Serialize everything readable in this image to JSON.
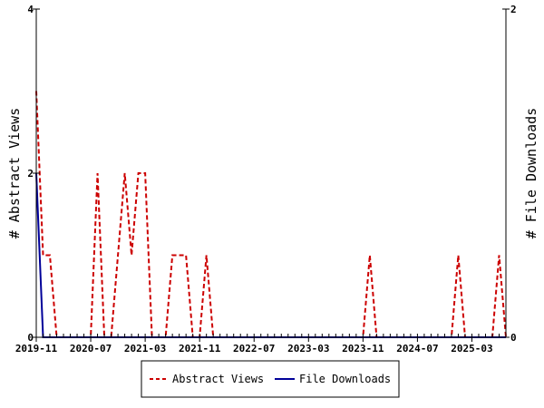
{
  "chart_data": {
    "type": "line",
    "title": "",
    "xlabel": "",
    "ylabel_left": "# Abstract Views",
    "ylabel_right": "# File Downloads",
    "x_tick_labels": [
      "2019-11",
      "2020-07",
      "2021-03",
      "2021-11",
      "2022-07",
      "2023-03",
      "2023-11",
      "2024-07",
      "2025-03"
    ],
    "y_left_ticks": [
      "0",
      "2",
      "4"
    ],
    "y_right_ticks": [
      "0",
      "2"
    ],
    "ylim_left": [
      0,
      4
    ],
    "ylim_right": [
      0,
      2
    ],
    "x_months": 70,
    "grid": false,
    "legend_position": "bottom",
    "series": [
      {
        "name": "Abstract Views",
        "axis": "left",
        "color": "#cc0000",
        "style": "dashed",
        "values": [
          3,
          1,
          1,
          0,
          0,
          0,
          0,
          0,
          0,
          2,
          0,
          0,
          1,
          2,
          1,
          2,
          2,
          0,
          0,
          0,
          1,
          1,
          1,
          0,
          0,
          1,
          0,
          0,
          0,
          0,
          0,
          0,
          0,
          0,
          0,
          0,
          0,
          0,
          0,
          0,
          0,
          0,
          0,
          0,
          0,
          0,
          0,
          0,
          0,
          1,
          0,
          0,
          0,
          0,
          0,
          0,
          0,
          0,
          0,
          0,
          0,
          0,
          1,
          0,
          0,
          0,
          0,
          0,
          1,
          0
        ]
      },
      {
        "name": "File Downloads",
        "axis": "right",
        "color": "#000099",
        "style": "solid",
        "values": [
          1,
          0,
          0,
          0,
          0,
          0,
          0,
          0,
          0,
          0,
          0,
          0,
          0,
          0,
          0,
          0,
          0,
          0,
          0,
          0,
          0,
          0,
          0,
          0,
          0,
          0,
          0,
          0,
          0,
          0,
          0,
          0,
          0,
          0,
          0,
          0,
          0,
          0,
          0,
          0,
          0,
          0,
          0,
          0,
          0,
          0,
          0,
          0,
          0,
          0,
          0,
          0,
          0,
          0,
          0,
          0,
          0,
          0,
          0,
          0,
          0,
          0,
          0,
          0,
          0,
          0,
          0,
          0,
          0,
          0
        ]
      }
    ]
  }
}
